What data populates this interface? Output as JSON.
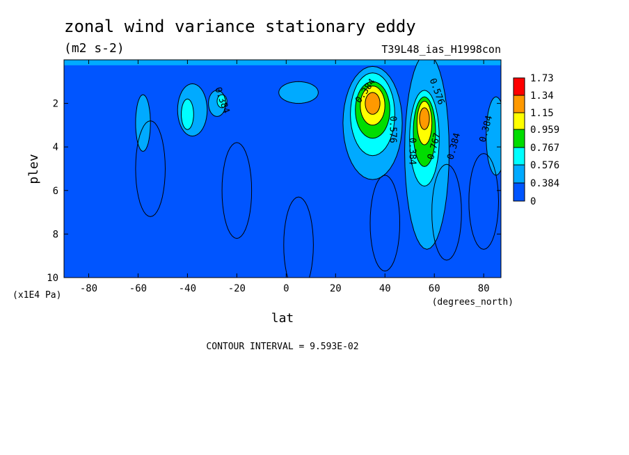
{
  "title": "zonal wind variance stationary eddy",
  "units": "(m2 s-2)",
  "dataset": "T39L48_ias_H1998con",
  "xlabel": "lat",
  "ylabel": "plev",
  "x_units": "(degrees_north)",
  "y_units": "(x1E4 Pa)",
  "contour_interval": "CONTOUR INTERVAL = 9.593E-02",
  "chart_data": {
    "type": "heatmap",
    "subtype": "filled-contour",
    "title": "zonal wind variance stationary eddy",
    "xlabel": "lat",
    "ylabel": "plev",
    "xlim": [
      -90,
      87
    ],
    "ylim": [
      0,
      10
    ],
    "y_inverted": true,
    "x_ticks": [
      -80,
      -60,
      -40,
      -20,
      0,
      20,
      40,
      60,
      80
    ],
    "y_ticks": [
      2,
      4,
      6,
      8,
      10
    ],
    "colorbar": {
      "labels": [
        "1.73",
        "1.34",
        "1.15",
        "0.959",
        "0.767",
        "0.576",
        "0.384",
        "0"
      ],
      "colors": [
        "#ff0000",
        "#ff9900",
        "#ffff00",
        "#00dd00",
        "#00ffff",
        "#00aaff",
        "#0055ff"
      ]
    },
    "contour_labels": [
      "0.384",
      "0.384",
      "0.576",
      "0.384",
      "0.576",
      "0.767",
      "0.384",
      "0.384"
    ],
    "features": [
      {
        "lat": 34,
        "plev": 2.0,
        "peak": 1.4
      },
      {
        "lat": 56,
        "plev": 2.8,
        "peak": 1.3
      },
      {
        "lat": -40,
        "plev": 2.5,
        "peak": 0.7
      },
      {
        "lat": -58,
        "plev": 2.8,
        "peak": 0.55
      },
      {
        "lat": -28,
        "plev": 2.0,
        "peak": 0.55
      }
    ]
  }
}
